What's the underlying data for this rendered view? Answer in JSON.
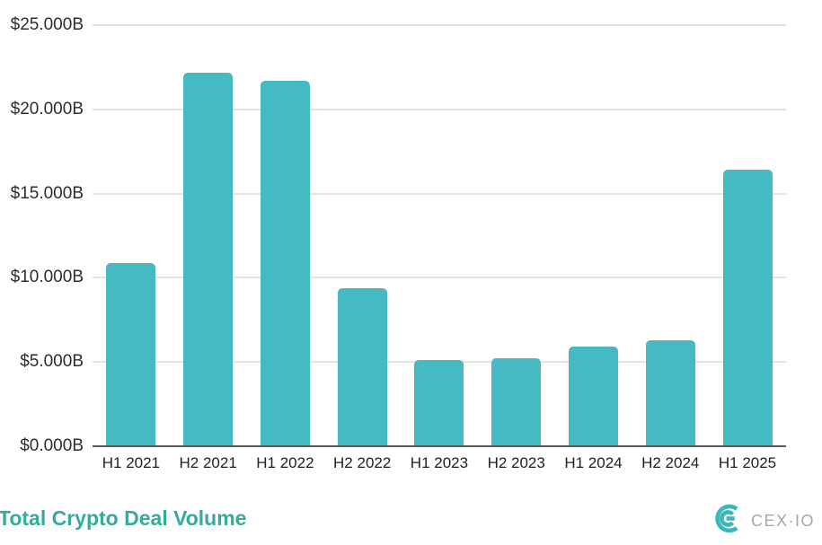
{
  "chart_data": {
    "type": "bar",
    "categories": [
      "H1 2021",
      "H2 2021",
      "H1 2022",
      "H2 2022",
      "H1 2023",
      "H2 2023",
      "H1 2024",
      "H2 2024",
      "H1 2025"
    ],
    "values": [
      10.9,
      22.2,
      21.7,
      9.4,
      5.1,
      5.2,
      5.9,
      6.3,
      16.4
    ],
    "title": "Total Crypto Deal Volume",
    "xlabel": "",
    "ylabel": "",
    "ylim": [
      0,
      25
    ],
    "y_tick_labels": [
      "$25.000B",
      "$20.000B",
      "$15.000B",
      "$10.000B",
      "$5.000B",
      "$0.000B"
    ],
    "grid": "horizontal gridlines on",
    "legend": "none",
    "unit": "USD billions",
    "bar_color": "#46bac2"
  },
  "footer": {
    "logo_text": "CEX·IO"
  },
  "colors": {
    "bar": "#46bac2",
    "title_text": "#35ab9a",
    "logo_mark": "#3cb8b8",
    "logo_text": "#a3a9ae",
    "gridline": "#e3e3e3",
    "axis_line": "#5a5a5a",
    "tick_text": "#2d2d2d"
  }
}
